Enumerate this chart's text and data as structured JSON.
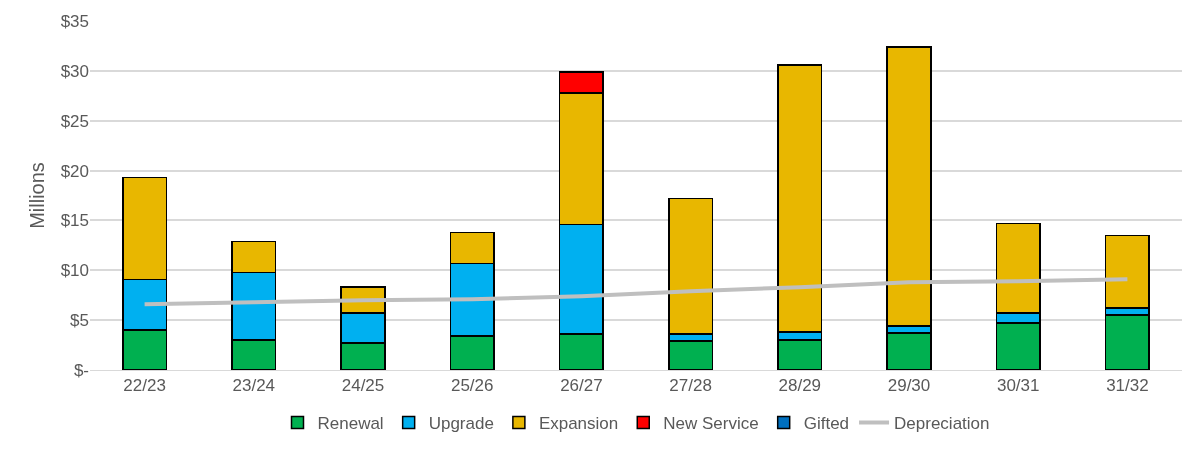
{
  "chart_data": {
    "type": "bar",
    "stacked": true,
    "ylabel": "Millions",
    "categories": [
      "22/23",
      "23/24",
      "24/25",
      "25/26",
      "26/27",
      "27/28",
      "28/29",
      "29/30",
      "30/31",
      "31/32"
    ],
    "series": [
      {
        "name": "Renewal",
        "color": "#00b050",
        "values": [
          4.0,
          3.0,
          2.7,
          3.4,
          3.6,
          2.9,
          3.0,
          3.7,
          4.7,
          5.5
        ]
      },
      {
        "name": "Upgrade",
        "color": "#00b0f0",
        "values": [
          5.1,
          6.8,
          3.0,
          7.3,
          11.0,
          0.7,
          0.8,
          0.7,
          1.0,
          0.7
        ]
      },
      {
        "name": "Expansion",
        "color": "#e8b700",
        "values": [
          10.2,
          3.1,
          2.6,
          3.1,
          13.2,
          13.6,
          26.8,
          28.0,
          9.0,
          7.3
        ]
      },
      {
        "name": "New Service",
        "color": "#ff0000",
        "values": [
          null,
          null,
          null,
          null,
          2.1,
          null,
          null,
          null,
          null,
          null
        ]
      },
      {
        "name": "Gifted",
        "color": "#0070c0",
        "values": [
          null,
          null,
          null,
          null,
          null,
          null,
          null,
          null,
          null,
          null
        ]
      },
      {
        "name": "Depreciation",
        "type": "line",
        "color": "#bfbfbf",
        "marker": "none",
        "line_style": "solid",
        "values": [
          6.6,
          6.8,
          7.0,
          7.1,
          7.4,
          7.9,
          8.3,
          8.8,
          8.9,
          9.1
        ]
      }
    ],
    "ylim": [
      0,
      35
    ],
    "yticks": [
      {
        "value": 0,
        "label": "$-"
      },
      {
        "value": 5,
        "label": "$5"
      },
      {
        "value": 10,
        "label": "$10"
      },
      {
        "value": 15,
        "label": "$15"
      },
      {
        "value": 20,
        "label": "$20"
      },
      {
        "value": 25,
        "label": "$25"
      },
      {
        "value": 30,
        "label": "$30"
      },
      {
        "value": 35,
        "label": "$35"
      }
    ],
    "grid": "y",
    "legend": "bottom"
  }
}
